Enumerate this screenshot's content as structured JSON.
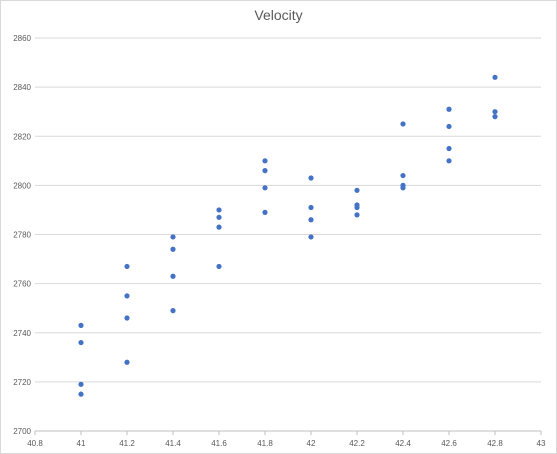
{
  "chart_data": {
    "type": "scatter",
    "title": "Velocity",
    "xlabel": "",
    "ylabel": "",
    "xlim": [
      40.8,
      43
    ],
    "ylim": [
      2700,
      2860
    ],
    "x_ticks": [
      "40.8",
      "41",
      "41.2",
      "41.4",
      "41.6",
      "41.8",
      "42",
      "42.2",
      "42.4",
      "42.6",
      "42.8",
      "43"
    ],
    "y_ticks": [
      "2700",
      "2720",
      "2740",
      "2760",
      "2780",
      "2800",
      "2820",
      "2840",
      "2860"
    ],
    "grid": "horizontal",
    "legend": "none",
    "marker_color": "#4472c4",
    "series": [
      {
        "points": [
          [
            41.0,
            2743
          ],
          [
            41.0,
            2736
          ],
          [
            41.0,
            2719
          ],
          [
            41.0,
            2715
          ],
          [
            41.2,
            2767
          ],
          [
            41.2,
            2755
          ],
          [
            41.2,
            2746
          ],
          [
            41.2,
            2728
          ],
          [
            41.4,
            2779
          ],
          [
            41.4,
            2774
          ],
          [
            41.4,
            2763
          ],
          [
            41.4,
            2749
          ],
          [
            41.6,
            2790
          ],
          [
            41.6,
            2787
          ],
          [
            41.6,
            2783
          ],
          [
            41.6,
            2767
          ],
          [
            41.8,
            2810
          ],
          [
            41.8,
            2806
          ],
          [
            41.8,
            2799
          ],
          [
            41.8,
            2789
          ],
          [
            42.0,
            2803
          ],
          [
            42.0,
            2791
          ],
          [
            42.0,
            2786
          ],
          [
            42.0,
            2779
          ],
          [
            42.2,
            2798
          ],
          [
            42.2,
            2792
          ],
          [
            42.2,
            2791
          ],
          [
            42.2,
            2788
          ],
          [
            42.4,
            2825
          ],
          [
            42.4,
            2804
          ],
          [
            42.4,
            2800
          ],
          [
            42.4,
            2799
          ],
          [
            42.6,
            2831
          ],
          [
            42.6,
            2824
          ],
          [
            42.6,
            2815
          ],
          [
            42.6,
            2810
          ],
          [
            42.8,
            2844
          ],
          [
            42.8,
            2830
          ],
          [
            42.8,
            2828
          ]
        ]
      }
    ]
  }
}
